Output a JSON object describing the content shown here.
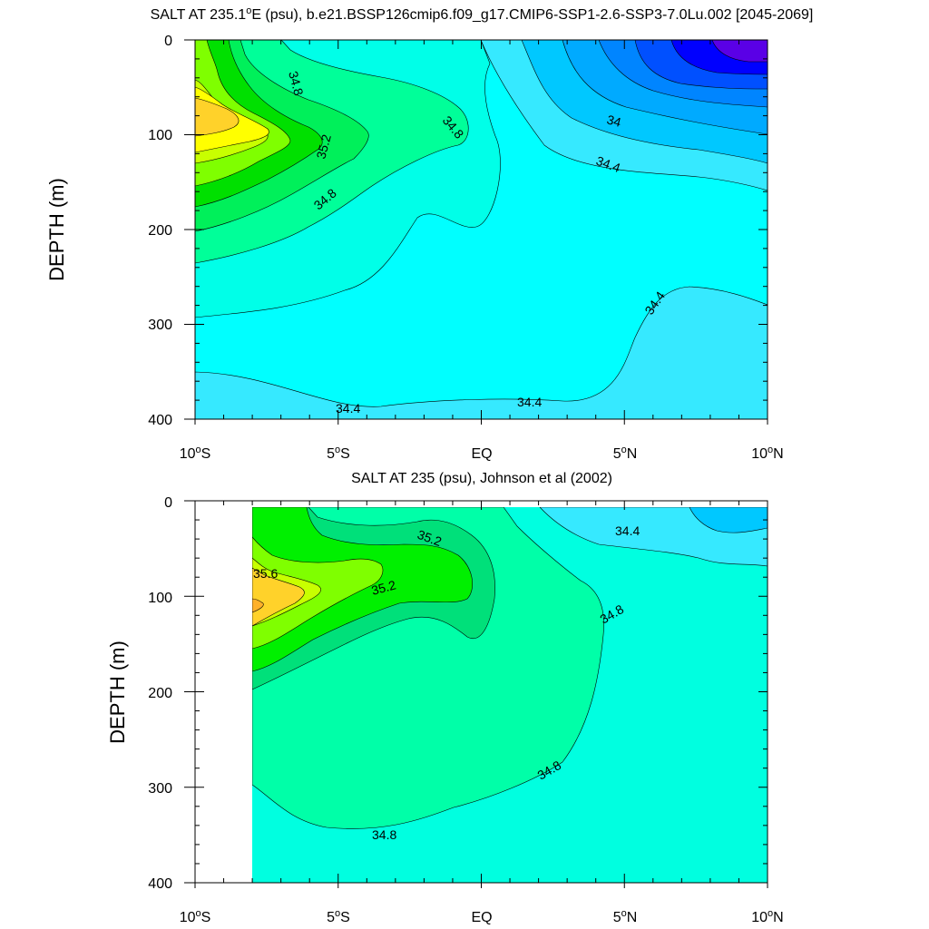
{
  "chart_data": [
    {
      "type": "heatmap",
      "subtype": "filled-contour",
      "title": "SALT AT 235.1°E (psu), b.e21.BSSP126cmip6.f09_g17.CMIP6-SSP1-2.6-SSP3-7.0Lu.002 [2045-2069]",
      "title_parts": [
        "SALT AT 235.1",
        "o",
        "E (psu), b.e21.BSSP126cmip6.f09_g17.CMIP6-SSP1-2.6-SSP3-7.0Lu.002 [2045-2069]"
      ],
      "ylabel": "DEPTH (m)",
      "xlim": [
        -10,
        10
      ],
      "ylim": [
        0,
        400
      ],
      "y_reversed": true,
      "y_ticks": [
        "0",
        "100",
        "200",
        "300",
        "400"
      ],
      "x_ticks": [
        {
          "v": -10,
          "t": "10",
          "s": "o",
          "u": "S"
        },
        {
          "v": -5,
          "t": "5",
          "s": "o",
          "u": "S"
        },
        {
          "v": 0,
          "t": "EQ",
          "s": "",
          "u": ""
        },
        {
          "v": 5,
          "t": "5",
          "s": "o",
          "u": "N"
        },
        {
          "v": 10,
          "t": "10",
          "s": "o",
          "u": "N"
        }
      ],
      "contour_interval": 0.2,
      "contour_labels": [
        {
          "text": "34.8",
          "x": -6.6,
          "y": 32
        },
        {
          "text": "34.8",
          "x": -1.1,
          "y": 88
        },
        {
          "text": "35.2",
          "x": -5.5,
          "y": 117
        },
        {
          "text": "34.8",
          "x": -5.5,
          "y": 172
        },
        {
          "text": "34",
          "x": 4.6,
          "y": 82
        },
        {
          "text": "34.4",
          "x": 4.6,
          "y": 132
        },
        {
          "text": "34.4",
          "x": 6.4,
          "y": 285
        },
        {
          "text": "34.4",
          "x": -4.6,
          "y": 388
        },
        {
          "text": "34.4",
          "x": 1.7,
          "y": 383
        }
      ]
    },
    {
      "type": "heatmap",
      "subtype": "filled-contour",
      "title": "SALT AT 235 (psu), Johnson et al (2002)",
      "ylabel": "DEPTH (m)",
      "xlim": [
        -10,
        10
      ],
      "ylim": [
        0,
        400
      ],
      "y_reversed": true,
      "data_xrange": [
        -8,
        10
      ],
      "y_ticks": [
        "0",
        "100",
        "200",
        "300",
        "400"
      ],
      "x_ticks": [
        {
          "v": -10,
          "t": "10",
          "s": "o",
          "u": "S"
        },
        {
          "v": -5,
          "t": "5",
          "s": "o",
          "u": "S"
        },
        {
          "v": 0,
          "t": "EQ",
          "s": "",
          "u": ""
        },
        {
          "v": 5,
          "t": "5",
          "s": "o",
          "u": "N"
        },
        {
          "v": 10,
          "t": "10",
          "s": "o",
          "u": "N"
        }
      ],
      "contour_interval": 0.2,
      "contour_labels": [
        {
          "text": "35.6",
          "x": -7.4,
          "y": 72
        },
        {
          "text": "35.2",
          "x": -1.8,
          "y": 40
        },
        {
          "text": "35.2",
          "x": -3.2,
          "y": 85
        },
        {
          "text": "34.4",
          "x": 5.2,
          "y": 28
        },
        {
          "text": "34.8",
          "x": 4.7,
          "y": 112
        },
        {
          "text": "34.8",
          "x": 2.4,
          "y": 280
        },
        {
          "text": "34.8",
          "x": -3.2,
          "y": 348
        }
      ]
    }
  ]
}
